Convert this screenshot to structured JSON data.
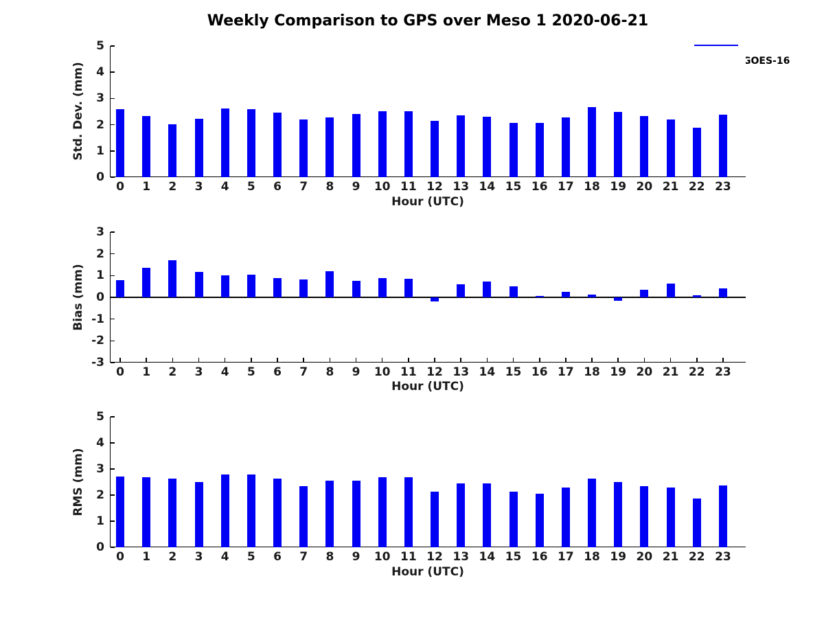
{
  "title": "Weekly Comparison to GPS over Meso 1 2020-06-21",
  "legend": {
    "label": "GOES-16",
    "position": "top-right",
    "swatch_color": "#0000f5"
  },
  "colors": {
    "bar": "#0000f5",
    "axis": "#000000",
    "text": "#1a1a1a",
    "background": "#ffffff"
  },
  "chart_data": [
    {
      "type": "bar",
      "title": "",
      "ylabel": "Std. Dev. (mm)",
      "xlabel": "Hour (UTC)",
      "categories": [
        "0",
        "1",
        "2",
        "3",
        "4",
        "5",
        "6",
        "7",
        "8",
        "9",
        "10",
        "11",
        "12",
        "13",
        "14",
        "15",
        "16",
        "17",
        "18",
        "19",
        "20",
        "21",
        "22",
        "23"
      ],
      "series": [
        {
          "name": "GOES-16",
          "values": [
            2.58,
            2.33,
            2.01,
            2.22,
            2.63,
            2.59,
            2.45,
            2.19,
            2.27,
            2.42,
            2.52,
            2.52,
            2.14,
            2.36,
            2.31,
            2.06,
            2.08,
            2.28,
            2.66,
            2.5,
            2.32,
            2.21,
            1.88,
            2.37
          ]
        }
      ],
      "ylim": [
        0,
        5
      ],
      "yticks": [
        0,
        1,
        2,
        3,
        4,
        5
      ],
      "grid": false,
      "legend_position": "top-right"
    },
    {
      "type": "bar",
      "title": "",
      "ylabel": "Bias (mm)",
      "xlabel": "Hour (UTC)",
      "categories": [
        "0",
        "1",
        "2",
        "3",
        "4",
        "5",
        "6",
        "7",
        "8",
        "9",
        "10",
        "11",
        "12",
        "13",
        "14",
        "15",
        "16",
        "17",
        "18",
        "19",
        "20",
        "21",
        "22",
        "23"
      ],
      "series": [
        {
          "name": "GOES-16",
          "values": [
            0.79,
            1.35,
            1.69,
            1.17,
            1.0,
            1.04,
            0.88,
            0.83,
            1.2,
            0.77,
            0.88,
            0.85,
            -0.18,
            0.6,
            0.73,
            0.51,
            0.05,
            0.26,
            0.13,
            -0.15,
            0.35,
            0.63,
            0.1,
            0.41
          ]
        }
      ],
      "ylim": [
        -3,
        3
      ],
      "yticks": [
        -3,
        -2,
        -1,
        0,
        1,
        2,
        3
      ],
      "zero_line": true,
      "grid": false
    },
    {
      "type": "bar",
      "title": "",
      "ylabel": "RMS (mm)",
      "xlabel": "Hour (UTC)",
      "categories": [
        "0",
        "1",
        "2",
        "3",
        "4",
        "5",
        "6",
        "7",
        "8",
        "9",
        "10",
        "11",
        "12",
        "13",
        "14",
        "15",
        "16",
        "17",
        "18",
        "19",
        "20",
        "21",
        "22",
        "23"
      ],
      "series": [
        {
          "name": "GOES-16",
          "values": [
            2.7,
            2.68,
            2.63,
            2.5,
            2.8,
            2.78,
            2.63,
            2.33,
            2.54,
            2.54,
            2.68,
            2.68,
            2.14,
            2.46,
            2.44,
            2.12,
            2.06,
            2.3,
            2.64,
            2.51,
            2.33,
            2.3,
            1.87,
            2.38
          ]
        }
      ],
      "ylim": [
        0,
        5
      ],
      "yticks": [
        0,
        1,
        2,
        3,
        4,
        5
      ],
      "grid": false
    }
  ]
}
